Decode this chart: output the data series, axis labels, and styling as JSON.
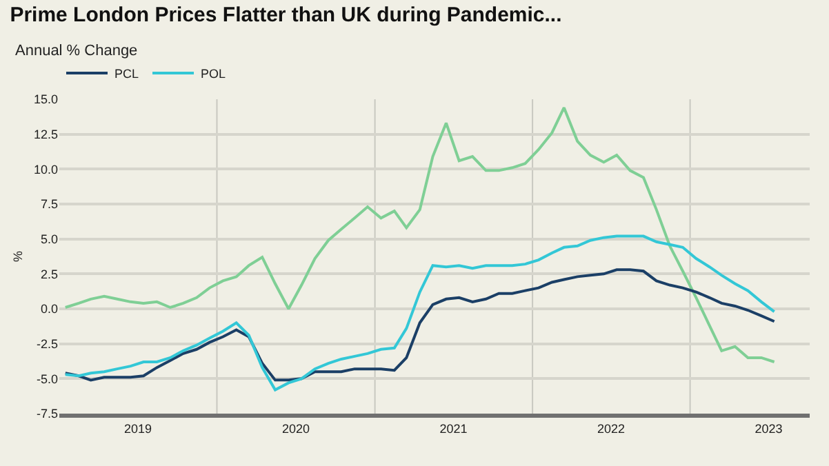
{
  "chart_data": {
    "type": "line",
    "title": "Prime London Prices Flatter than UK during Pandemic...",
    "subtitle": "Annual % Change",
    "ylabel": "%",
    "x": [
      "2019-01-15",
      "2019-02-15",
      "2019-03-15",
      "2019-04-15",
      "2019-05-15",
      "2019-06-15",
      "2019-07-15",
      "2019-08-15",
      "2019-09-15",
      "2019-10-15",
      "2019-11-15",
      "2019-12-15",
      "2020-01-15",
      "2020-02-15",
      "2020-03-15",
      "2020-04-15",
      "2020-05-15",
      "2020-06-15",
      "2020-07-15",
      "2020-08-15",
      "2020-09-15",
      "2020-10-15",
      "2020-11-15",
      "2020-12-15",
      "2021-01-15",
      "2021-02-15",
      "2021-03-15",
      "2021-04-15",
      "2021-05-15",
      "2021-06-15",
      "2021-07-15",
      "2021-08-15",
      "2021-09-15",
      "2021-10-15",
      "2021-11-15",
      "2021-12-15",
      "2022-01-15",
      "2022-02-15",
      "2022-03-15",
      "2022-04-15",
      "2022-05-15",
      "2022-06-15",
      "2022-07-15",
      "2022-08-15",
      "2022-09-15",
      "2022-10-15",
      "2022-11-15",
      "2022-12-15",
      "2023-01-15",
      "2023-02-15",
      "2023-03-15",
      "2023-04-15",
      "2023-05-15",
      "2023-06-15",
      "2023-07-15"
    ],
    "series": [
      {
        "color": "#7fcf95",
        "values": [
          0.1,
          0.4,
          0.7,
          0.9,
          0.7,
          0.5,
          0.4,
          0.5,
          0.1,
          0.4,
          0.8,
          1.5,
          2.0,
          2.3,
          3.1,
          3.7,
          1.8,
          0.0,
          1.7,
          3.6,
          4.9,
          5.7,
          6.5,
          7.3,
          6.5,
          7.0,
          5.8,
          7.1,
          10.9,
          13.3,
          10.6,
          10.9,
          9.9,
          9.9,
          10.1,
          10.4,
          11.4,
          12.6,
          14.4,
          12.0,
          11.0,
          10.5,
          11.0,
          9.9,
          9.4,
          7.1,
          4.5,
          2.7,
          0.8,
          -1.2,
          -3.0,
          -2.7,
          -3.5,
          -3.5,
          -3.8
        ]
      },
      {
        "name": "PCL",
        "color": "#1b3f66",
        "values": [
          -4.6,
          -4.8,
          -5.1,
          -4.9,
          -4.9,
          -4.9,
          -4.8,
          -4.2,
          -3.7,
          -3.2,
          -2.9,
          -2.4,
          -2.0,
          -1.5,
          -2.0,
          -3.9,
          -5.1,
          -5.1,
          -5.0,
          -4.5,
          -4.5,
          -4.5,
          -4.3,
          -4.3,
          -4.3,
          -4.4,
          -3.5,
          -1.0,
          0.3,
          0.7,
          0.8,
          0.5,
          0.7,
          1.1,
          1.1,
          1.3,
          1.5,
          1.9,
          2.1,
          2.3,
          2.4,
          2.5,
          2.8,
          2.8,
          2.7,
          2.0,
          1.7,
          1.5,
          1.2,
          0.8,
          0.4,
          0.2,
          -0.1,
          -0.5,
          -0.9
        ]
      },
      {
        "name": "POL",
        "color": "#33c7d6",
        "values": [
          -4.7,
          -4.8,
          -4.6,
          -4.5,
          -4.3,
          -4.1,
          -3.8,
          -3.8,
          -3.5,
          -3.0,
          -2.6,
          -2.1,
          -1.6,
          -1.0,
          -1.9,
          -4.2,
          -5.8,
          -5.3,
          -5.0,
          -4.3,
          -3.9,
          -3.6,
          -3.4,
          -3.2,
          -2.9,
          -2.8,
          -1.4,
          1.2,
          3.1,
          3.0,
          3.1,
          2.9,
          3.1,
          3.1,
          3.1,
          3.2,
          3.5,
          4.0,
          4.4,
          4.5,
          4.9,
          5.1,
          5.2,
          5.2,
          5.2,
          4.8,
          4.6,
          4.4,
          3.6,
          3.0,
          2.4,
          1.8,
          1.3,
          0.5,
          -0.2
        ]
      }
    ],
    "xlim": [
      "2019-01-01",
      "2023-10-05"
    ],
    "xticks": [
      {
        "value": "2019-07-02",
        "label": "2019"
      },
      {
        "value": "2020-01-01",
        "label": null
      },
      {
        "value": "2020-07-02",
        "label": "2020"
      },
      {
        "value": "2021-01-01",
        "label": null
      },
      {
        "value": "2021-07-02",
        "label": "2021"
      },
      {
        "value": "2022-01-01",
        "label": null
      },
      {
        "value": "2022-07-02",
        "label": "2022"
      },
      {
        "value": "2023-01-01",
        "label": null
      },
      {
        "value": "2023-07-02",
        "label": "2023"
      }
    ],
    "ylim": [
      -7.5,
      15.0
    ],
    "yticks": [
      {
        "value": -7.5,
        "label": "-7.5"
      },
      {
        "value": -5.0,
        "label": "-5.0"
      },
      {
        "value": -2.5,
        "label": "-2.5"
      },
      {
        "value": 0.0,
        "label": "0.0"
      },
      {
        "value": 2.5,
        "label": "2.5"
      },
      {
        "value": 5.0,
        "label": "5.0"
      },
      {
        "value": 7.5,
        "label": "7.5"
      },
      {
        "value": 10.0,
        "label": "10.0"
      },
      {
        "value": 12.5,
        "label": "12.5"
      },
      {
        "value": 15.0,
        "label": "15.0"
      }
    ],
    "grid": true,
    "legend": "top left",
    "marker": "none",
    "line_style": "solid"
  }
}
